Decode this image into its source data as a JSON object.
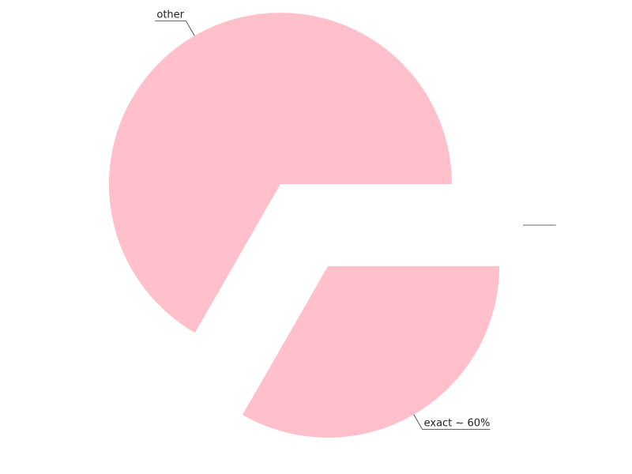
{
  "chart_data": {
    "type": "pie",
    "title": "",
    "slices": [
      {
        "label": "other",
        "value": 66.7,
        "color": "#ffc0cb"
      },
      {
        "label": "exact ~ 60%",
        "value": 33.3,
        "color": "#ffc0cb"
      },
      {
        "label": "",
        "value": 0,
        "color": "#ffc0cb"
      }
    ],
    "exploded": true,
    "legend": "none"
  }
}
